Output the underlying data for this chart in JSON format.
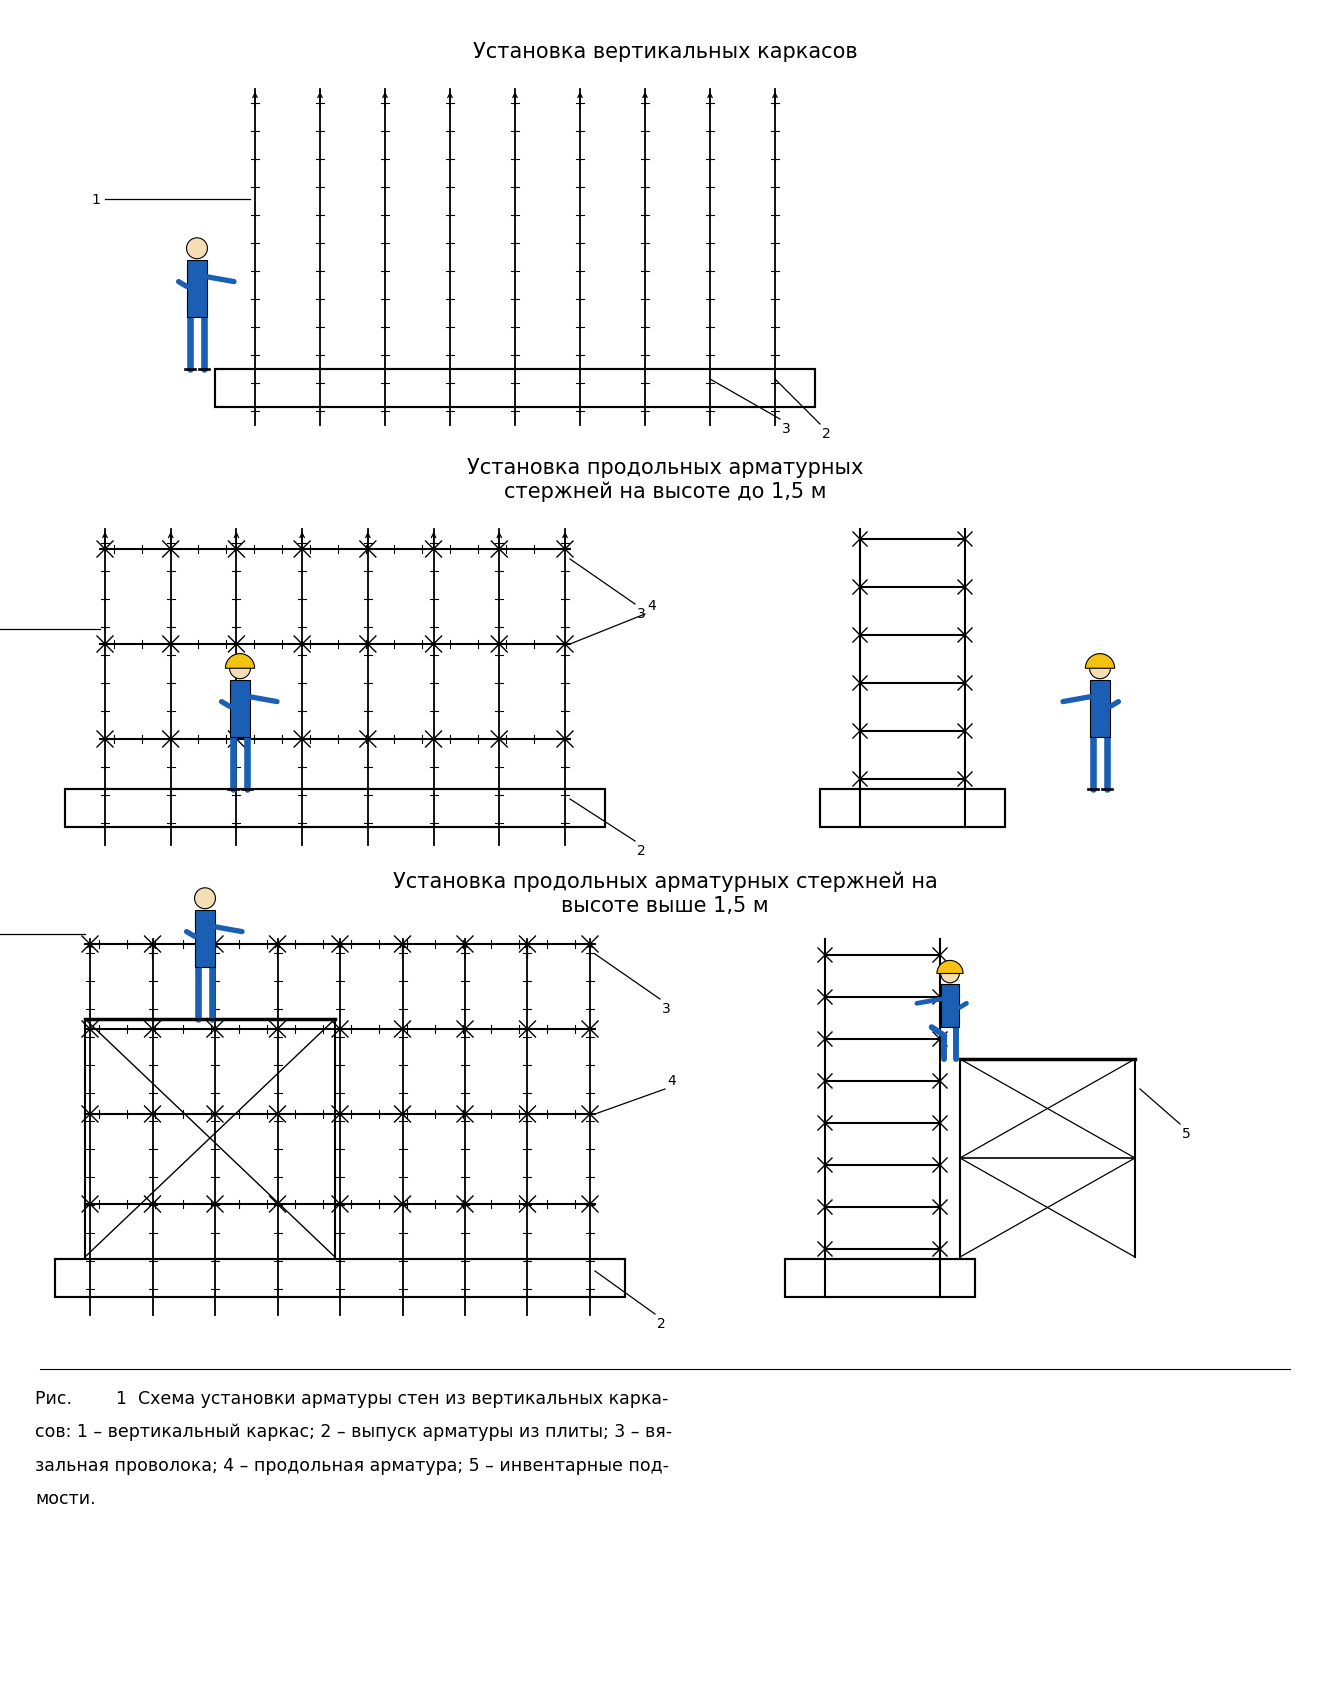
{
  "title1": "Установка вертикальных каркасов",
  "title2": "Установка продольных арматурных\nстержней на высоте до 1,5 м",
  "title3": "Установка продольных арматурных стержней на\nвысоте выше 1,5 м",
  "caption": "Рис.        1  Схема установки арматуры стен из вертикальных карка-\nсов: 1 – вертикальный каркас; 2 – выпуск арматуры из плиты; 3 – вя-\nзальная проволока; 4 – продольная арматура; 5 – инвентарные под-\nмости.",
  "bg_color": "#ffffff",
  "line_color": "#000000",
  "worker_blue": "#1a5fb4",
  "helmet_yellow": "#f5c211"
}
